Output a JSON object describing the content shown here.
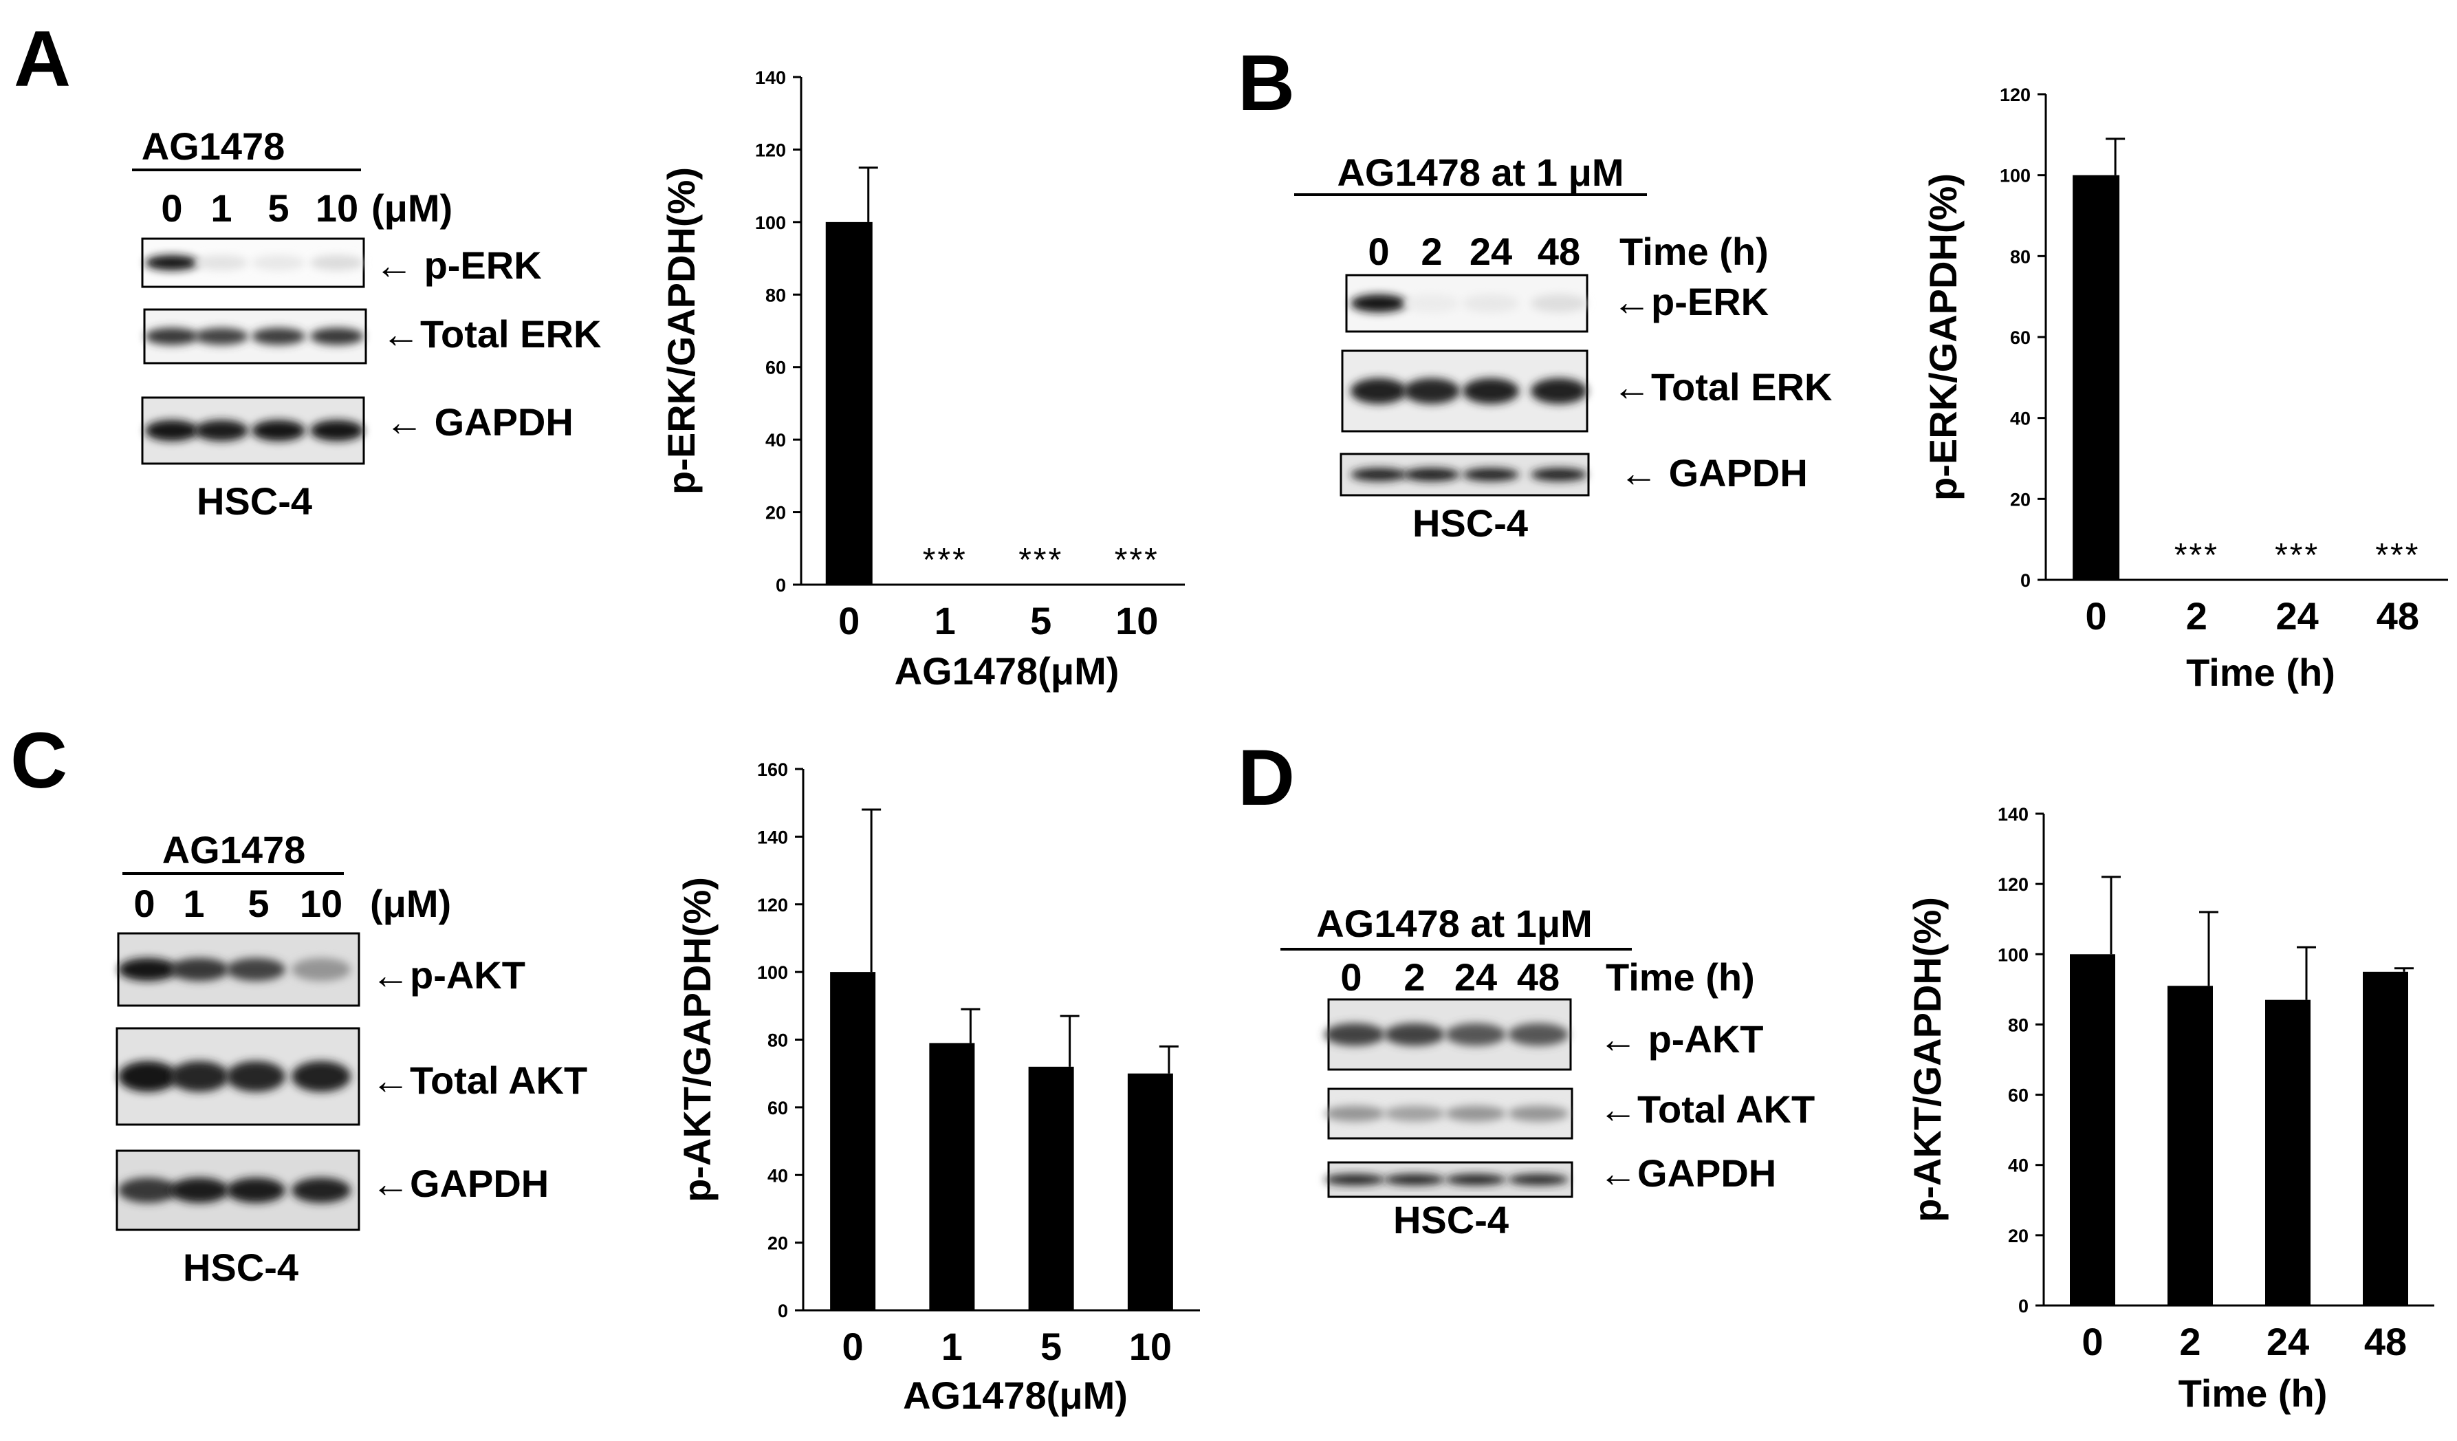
{
  "panels": {
    "A": {
      "letter": "A",
      "blot": {
        "treatment": "AG1478",
        "lanes": [
          "0",
          "1",
          "5",
          "10"
        ],
        "unit": "(μM)",
        "bands": [
          "p-ERK",
          "Total ERK",
          "GAPDH"
        ],
        "cell_line": "HSC-4",
        "intensity": [
          [
            1.0,
            0.12,
            0.1,
            0.15
          ],
          [
            0.85,
            0.8,
            0.82,
            0.85
          ],
          [
            1.0,
            0.97,
            1.0,
            1.0
          ]
        ]
      }
    },
    "B": {
      "letter": "B",
      "blot": {
        "treatment": "AG1478 at 1 μM",
        "lanes": [
          "0",
          "2",
          "24",
          "48"
        ],
        "unit": "Time (h)",
        "bands": [
          "p-ERK",
          "Total ERK",
          "GAPDH"
        ],
        "cell_line": "HSC-4",
        "intensity": [
          [
            1.0,
            0.08,
            0.1,
            0.14
          ],
          [
            0.95,
            0.92,
            0.93,
            0.95
          ],
          [
            0.95,
            0.97,
            0.95,
            0.95
          ]
        ]
      }
    },
    "C": {
      "letter": "C",
      "blot": {
        "treatment": "AG1478",
        "lanes": [
          "0",
          "1",
          "5",
          "10"
        ],
        "unit": "(μM)",
        "bands": [
          "p-AKT",
          "Total AKT",
          "GAPDH"
        ],
        "cell_line": "HSC-4",
        "intensity": [
          [
            1.0,
            0.85,
            0.8,
            0.45
          ],
          [
            1.0,
            0.92,
            0.92,
            0.95
          ],
          [
            0.85,
            0.97,
            0.97,
            0.95
          ]
        ]
      }
    },
    "D": {
      "letter": "D",
      "blot": {
        "treatment": "AG1478 at 1μM",
        "lanes": [
          "0",
          "2",
          "24",
          "48"
        ],
        "unit": "Time (h)",
        "bands": [
          "p-AKT",
          "Total AKT",
          "GAPDH"
        ],
        "cell_line": "HSC-4",
        "intensity": [
          [
            0.8,
            0.8,
            0.72,
            0.72
          ],
          [
            0.45,
            0.4,
            0.45,
            0.45
          ],
          [
            0.95,
            0.95,
            0.95,
            0.92
          ]
        ]
      }
    }
  },
  "chart_data": [
    {
      "id": "A",
      "type": "bar",
      "categories": [
        "0",
        "1",
        "5",
        "10"
      ],
      "values": [
        100,
        0,
        0,
        0
      ],
      "errors": [
        15,
        0,
        0,
        0
      ],
      "significance": [
        "",
        "***",
        "***",
        "***"
      ],
      "xlabel": "AG1478(μM)",
      "ylabel": "p-ERK/GAPDH(%)",
      "ylim": [
        0,
        140
      ],
      "yticks": [
        0,
        20,
        40,
        60,
        80,
        100,
        120,
        140
      ],
      "bar_color": "#000000"
    },
    {
      "id": "B",
      "type": "bar",
      "categories": [
        "0",
        "2",
        "24",
        "48"
      ],
      "values": [
        100,
        0,
        0,
        0
      ],
      "errors": [
        9,
        0,
        0,
        0
      ],
      "significance": [
        "",
        "***",
        "***",
        "***"
      ],
      "xlabel": "Time (h)",
      "ylabel": "p-ERK/GAPDH(%)",
      "ylim": [
        0,
        120
      ],
      "yticks": [
        0,
        20,
        40,
        60,
        80,
        100,
        120
      ],
      "bar_color": "#000000"
    },
    {
      "id": "C",
      "type": "bar",
      "categories": [
        "0",
        "1",
        "5",
        "10"
      ],
      "values": [
        100,
        79,
        72,
        70
      ],
      "errors": [
        48,
        10,
        15,
        8
      ],
      "significance": [
        "",
        "",
        "",
        ""
      ],
      "xlabel": "AG1478(μM)",
      "ylabel": "p-AKT/GAPDH(%)",
      "ylim": [
        0,
        160
      ],
      "yticks": [
        0,
        20,
        40,
        60,
        80,
        100,
        120,
        140,
        160
      ],
      "bar_color": "#000000"
    },
    {
      "id": "D",
      "type": "bar",
      "categories": [
        "0",
        "2",
        "24",
        "48"
      ],
      "values": [
        100,
        91,
        87,
        95
      ],
      "errors": [
        22,
        21,
        15,
        1
      ],
      "significance": [
        "",
        "",
        "",
        ""
      ],
      "xlabel": "Time (h)",
      "ylabel": "p-AKT/GAPDH(%)",
      "ylim": [
        0,
        140
      ],
      "yticks": [
        0,
        20,
        40,
        60,
        80,
        100,
        120,
        140
      ],
      "bar_color": "#000000"
    }
  ]
}
